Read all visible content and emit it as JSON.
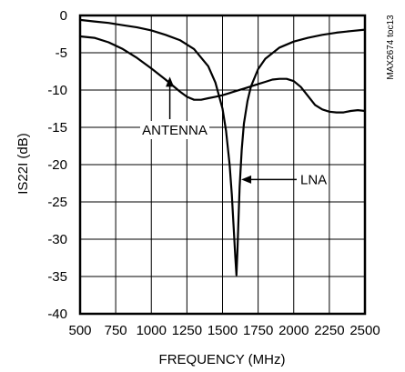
{
  "chart_data": {
    "type": "line",
    "title": "",
    "xlabel": "FREQUENCY (MHz)",
    "ylabel": "IS22I (dB)",
    "xlim": [
      500,
      2500
    ],
    "ylim": [
      -40,
      0
    ],
    "xticks": [
      500,
      750,
      1000,
      1250,
      1500,
      1750,
      2000,
      2250,
      2500
    ],
    "yticks": [
      0,
      -5,
      -10,
      -15,
      -20,
      -25,
      -30,
      -35,
      -40
    ],
    "xtick_labels": [
      "500",
      "750",
      "1000",
      "1250",
      "1500",
      "1750",
      "2000",
      "2250",
      "2500"
    ],
    "ytick_labels": [
      "0",
      "-5",
      "-10",
      "-15",
      "-20",
      "-25",
      "-30",
      "-35",
      "-40"
    ],
    "grid": true,
    "legend": "none",
    "series": [
      {
        "name": "ANTENNA",
        "x": [
          500,
          600,
          700,
          800,
          900,
          1000,
          1100,
          1200,
          1250,
          1300,
          1350,
          1400,
          1450,
          1500,
          1550,
          1600,
          1650,
          1700,
          1750,
          1800,
          1850,
          1900,
          1950,
          2000,
          2050,
          2100,
          2150,
          2200,
          2250,
          2300,
          2350,
          2400,
          2450,
          2500
        ],
        "y": [
          -2.8,
          -3.0,
          -3.6,
          -4.5,
          -5.7,
          -7.1,
          -8.6,
          -10.2,
          -10.9,
          -11.3,
          -11.3,
          -11.1,
          -10.9,
          -10.7,
          -10.4,
          -10.1,
          -9.8,
          -9.5,
          -9.2,
          -8.9,
          -8.6,
          -8.5,
          -8.5,
          -8.8,
          -9.6,
          -10.8,
          -12.0,
          -12.6,
          -12.9,
          -13.0,
          -13.0,
          -12.8,
          -12.7,
          -12.8
        ]
      },
      {
        "name": "LNA",
        "x": [
          500,
          600,
          700,
          800,
          900,
          1000,
          1100,
          1200,
          1300,
          1400,
          1450,
          1500,
          1525,
          1550,
          1565,
          1580,
          1590,
          1598,
          1605,
          1612,
          1620,
          1635,
          1650,
          1675,
          1700,
          1750,
          1800,
          1900,
          2000,
          2100,
          2200,
          2300,
          2400,
          2500
        ],
        "y": [
          -0.6,
          -0.8,
          -1.0,
          -1.3,
          -1.6,
          -2.0,
          -2.6,
          -3.3,
          -4.5,
          -6.8,
          -9.0,
          -12.5,
          -15.5,
          -20.0,
          -24.0,
          -29.0,
          -32.5,
          -34.8,
          -31.5,
          -27.5,
          -23.0,
          -18.0,
          -14.5,
          -11.5,
          -9.5,
          -7.2,
          -5.8,
          -4.3,
          -3.5,
          -3.0,
          -2.6,
          -2.3,
          -2.1,
          -1.9
        ]
      }
    ],
    "annotations": [
      {
        "text": "ANTENNA",
        "arrow_to": [
          1130,
          -8.1
        ]
      },
      {
        "text": "LNA",
        "arrow_to": [
          1625,
          -22.0
        ]
      }
    ],
    "side_text": "MAX2674 toc13"
  }
}
